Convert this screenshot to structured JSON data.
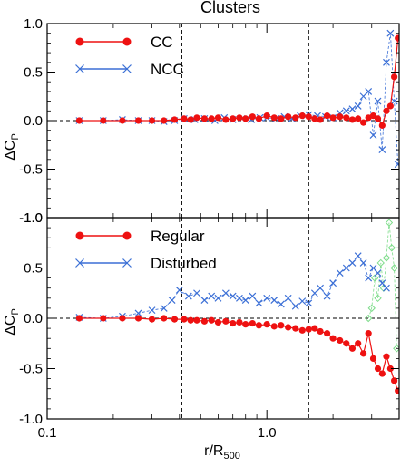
{
  "figure": {
    "title": "Clusters",
    "xlabel_main": "r/R",
    "xlabel_sub": "500",
    "ylabel_main": "ΔC",
    "ylabel_sub": "P"
  },
  "colors": {
    "red": "#ee1111",
    "blue": "#3b6fd6",
    "green": "#7ddc8a",
    "axis": "#000000"
  },
  "chart_data": [
    {
      "type": "line",
      "panel": "top",
      "xscale": "log",
      "xlim": [
        0.1,
        4.0
      ],
      "ylim": [
        -1.0,
        1.0
      ],
      "xticks": [
        {
          "v": 0.1,
          "label": "0.1"
        },
        {
          "v": 1.0,
          "label": "1.0"
        }
      ],
      "yticks": [
        {
          "v": 1.0,
          "label": "1.0"
        },
        {
          "v": 0.5,
          "label": "0.5"
        },
        {
          "v": 0.0,
          "label": "0.0"
        },
        {
          "v": -0.5,
          "label": "-0.5"
        },
        {
          "v": -1.0,
          "label": "-1.0"
        }
      ],
      "vlines": [
        0.41,
        1.55
      ],
      "hline": 0,
      "legend": [
        {
          "label": "CC",
          "color": "#ee1111",
          "marker": "circle"
        },
        {
          "label": "NCC",
          "color": "#3b6fd6",
          "marker": "cross"
        }
      ],
      "series": [
        {
          "name": "NCC",
          "color": "#3b6fd6",
          "marker": "cross",
          "style": "dashed",
          "x": [
            0.14,
            0.18,
            0.22,
            0.26,
            0.3,
            0.34,
            0.38,
            0.42,
            0.47,
            0.52,
            0.58,
            0.64,
            0.7,
            0.77,
            0.85,
            0.93,
            1.0,
            1.1,
            1.2,
            1.3,
            1.42,
            1.55,
            1.7,
            1.85,
            2.0,
            2.15,
            2.3,
            2.45,
            2.6,
            2.75,
            2.9,
            3.05,
            3.2,
            3.35,
            3.5,
            3.65,
            3.8,
            3.95
          ],
          "y": [
            0.0,
            0.0,
            0.01,
            0.0,
            0.0,
            -0.01,
            0.0,
            0.02,
            0.01,
            0.02,
            0.0,
            0.03,
            0.01,
            0.02,
            0.01,
            0.03,
            0.03,
            0.02,
            0.04,
            0.02,
            0.05,
            0.06,
            0.05,
            0.04,
            0.03,
            0.08,
            0.1,
            0.12,
            0.15,
            0.25,
            0.3,
            -0.15,
            0.2,
            -0.3,
            0.6,
            0.9,
            0.2,
            -0.45
          ]
        },
        {
          "name": "CC",
          "color": "#ee1111",
          "marker": "circle",
          "style": "solid",
          "x": [
            0.14,
            0.18,
            0.22,
            0.26,
            0.3,
            0.34,
            0.38,
            0.42,
            0.45,
            0.48,
            0.52,
            0.56,
            0.6,
            0.65,
            0.7,
            0.75,
            0.8,
            0.86,
            0.92,
            1.0,
            1.08,
            1.16,
            1.25,
            1.35,
            1.45,
            1.55,
            1.65,
            1.75,
            1.88,
            2.0,
            2.15,
            2.3,
            2.45,
            2.6,
            2.75,
            2.9,
            3.05,
            3.2,
            3.35,
            3.5,
            3.65,
            3.8,
            3.95
          ],
          "y": [
            0.0,
            0.0,
            0.0,
            0.0,
            0.0,
            0.0,
            0.01,
            0.02,
            0.01,
            0.03,
            0.02,
            0.02,
            0.03,
            0.01,
            0.02,
            0.03,
            0.02,
            0.04,
            0.02,
            0.05,
            0.03,
            0.02,
            0.04,
            0.03,
            0.05,
            0.04,
            0.02,
            0.01,
            0.05,
            0.03,
            0.04,
            0.03,
            0.01,
            0.02,
            -0.02,
            0.03,
            0.05,
            0.02,
            -0.05,
            0.1,
            0.15,
            0.45,
            0.85
          ]
        }
      ]
    },
    {
      "type": "line",
      "panel": "bottom",
      "xscale": "log",
      "xlim": [
        0.1,
        4.0
      ],
      "ylim": [
        -1.0,
        1.0
      ],
      "xticks": [
        {
          "v": 0.1,
          "label": "0.1"
        },
        {
          "v": 1.0,
          "label": "1.0"
        }
      ],
      "yticks": [
        {
          "v": 1.0,
          "label": "1.0"
        },
        {
          "v": 0.5,
          "label": "0.5"
        },
        {
          "v": 0.0,
          "label": "0.0"
        },
        {
          "v": -0.5,
          "label": "-0.5"
        },
        {
          "v": -1.0,
          "label": "-1.0"
        }
      ],
      "vlines": [
        0.41,
        1.55
      ],
      "hline": 0,
      "legend": [
        {
          "label": "Regular",
          "color": "#ee1111",
          "marker": "circle"
        },
        {
          "label": "Disturbed",
          "color": "#3b6fd6",
          "marker": "cross"
        }
      ],
      "series": [
        {
          "name": "",
          "color": "#7ddc8a",
          "marker": "diamond",
          "style": "dashed",
          "x": [
            2.9,
            3.0,
            3.1,
            3.2,
            3.3,
            3.4,
            3.5,
            3.6,
            3.7,
            3.8,
            3.9
          ],
          "y": [
            0.0,
            0.1,
            0.4,
            0.2,
            0.55,
            0.3,
            0.6,
            0.95,
            0.7,
            0.5,
            -0.3
          ]
        },
        {
          "name": "Disturbed",
          "color": "#3b6fd6",
          "marker": "cross",
          "style": "dashed",
          "x": [
            0.14,
            0.18,
            0.22,
            0.26,
            0.3,
            0.34,
            0.37,
            0.4,
            0.44,
            0.48,
            0.52,
            0.56,
            0.6,
            0.65,
            0.7,
            0.75,
            0.8,
            0.86,
            0.92,
            1.0,
            1.08,
            1.16,
            1.25,
            1.35,
            1.45,
            1.55,
            1.65,
            1.75,
            1.88,
            2.0,
            2.15,
            2.3,
            2.45,
            2.6,
            2.75,
            2.9,
            3.05,
            3.2,
            3.35,
            3.5
          ],
          "y": [
            0.01,
            0.0,
            0.02,
            0.05,
            0.08,
            0.1,
            0.18,
            0.28,
            0.22,
            0.25,
            0.18,
            0.22,
            0.2,
            0.25,
            0.22,
            0.2,
            0.18,
            0.22,
            0.15,
            0.2,
            0.18,
            0.14,
            0.2,
            0.12,
            0.17,
            0.15,
            0.25,
            0.3,
            0.22,
            0.35,
            0.45,
            0.5,
            0.55,
            0.62,
            0.55,
            0.4,
            0.5,
            0.45,
            0.35,
            0.3
          ]
        },
        {
          "name": "Regular",
          "color": "#ee1111",
          "marker": "circle",
          "style": "solid",
          "x": [
            0.14,
            0.18,
            0.22,
            0.26,
            0.3,
            0.34,
            0.38,
            0.42,
            0.45,
            0.48,
            0.52,
            0.56,
            0.6,
            0.65,
            0.7,
            0.75,
            0.8,
            0.86,
            0.92,
            1.0,
            1.08,
            1.16,
            1.25,
            1.35,
            1.45,
            1.55,
            1.65,
            1.75,
            1.88,
            2.0,
            2.15,
            2.3,
            2.45,
            2.6,
            2.75,
            2.9,
            3.05,
            3.2,
            3.35,
            3.5,
            3.65,
            3.8,
            3.95
          ],
          "y": [
            0.0,
            0.0,
            0.0,
            0.0,
            -0.01,
            0.0,
            -0.01,
            -0.01,
            -0.02,
            -0.02,
            -0.03,
            -0.02,
            -0.04,
            -0.03,
            -0.05,
            -0.04,
            -0.06,
            -0.05,
            -0.07,
            -0.06,
            -0.08,
            -0.07,
            -0.09,
            -0.1,
            -0.12,
            -0.11,
            -0.1,
            -0.13,
            -0.15,
            -0.2,
            -0.22,
            -0.25,
            -0.3,
            -0.25,
            -0.35,
            -0.15,
            -0.4,
            -0.5,
            -0.55,
            -0.38,
            -0.5,
            -0.62,
            -0.72
          ]
        }
      ]
    }
  ]
}
